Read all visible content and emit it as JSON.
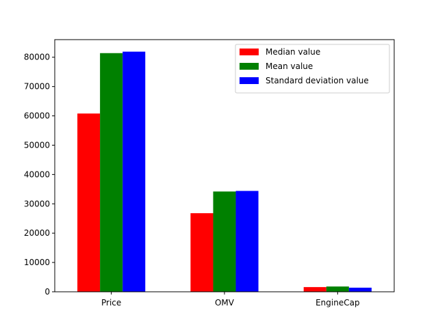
{
  "chart_data": {
    "type": "bar",
    "title": "",
    "xlabel": "",
    "ylabel": "",
    "categories": [
      "Price",
      "OMV",
      "EngineCap"
    ],
    "series": [
      {
        "name": "Median value",
        "color": "#ff0000",
        "values": [
          60800,
          26800,
          1600
        ]
      },
      {
        "name": "Mean value",
        "color": "#008000",
        "values": [
          81400,
          34200,
          1800
        ]
      },
      {
        "name": "Standard deviation value",
        "color": "#0000ff",
        "values": [
          81900,
          34400,
          1400
        ]
      }
    ],
    "ylim": [
      0,
      86000
    ],
    "yticks": [
      0,
      10000,
      20000,
      30000,
      40000,
      50000,
      60000,
      70000,
      80000
    ],
    "ytick_labels": [
      "0",
      "10000",
      "20000",
      "30000",
      "40000",
      "50000",
      "60000",
      "70000",
      "80000"
    ],
    "legend_position": "top-right",
    "grid": false
  }
}
